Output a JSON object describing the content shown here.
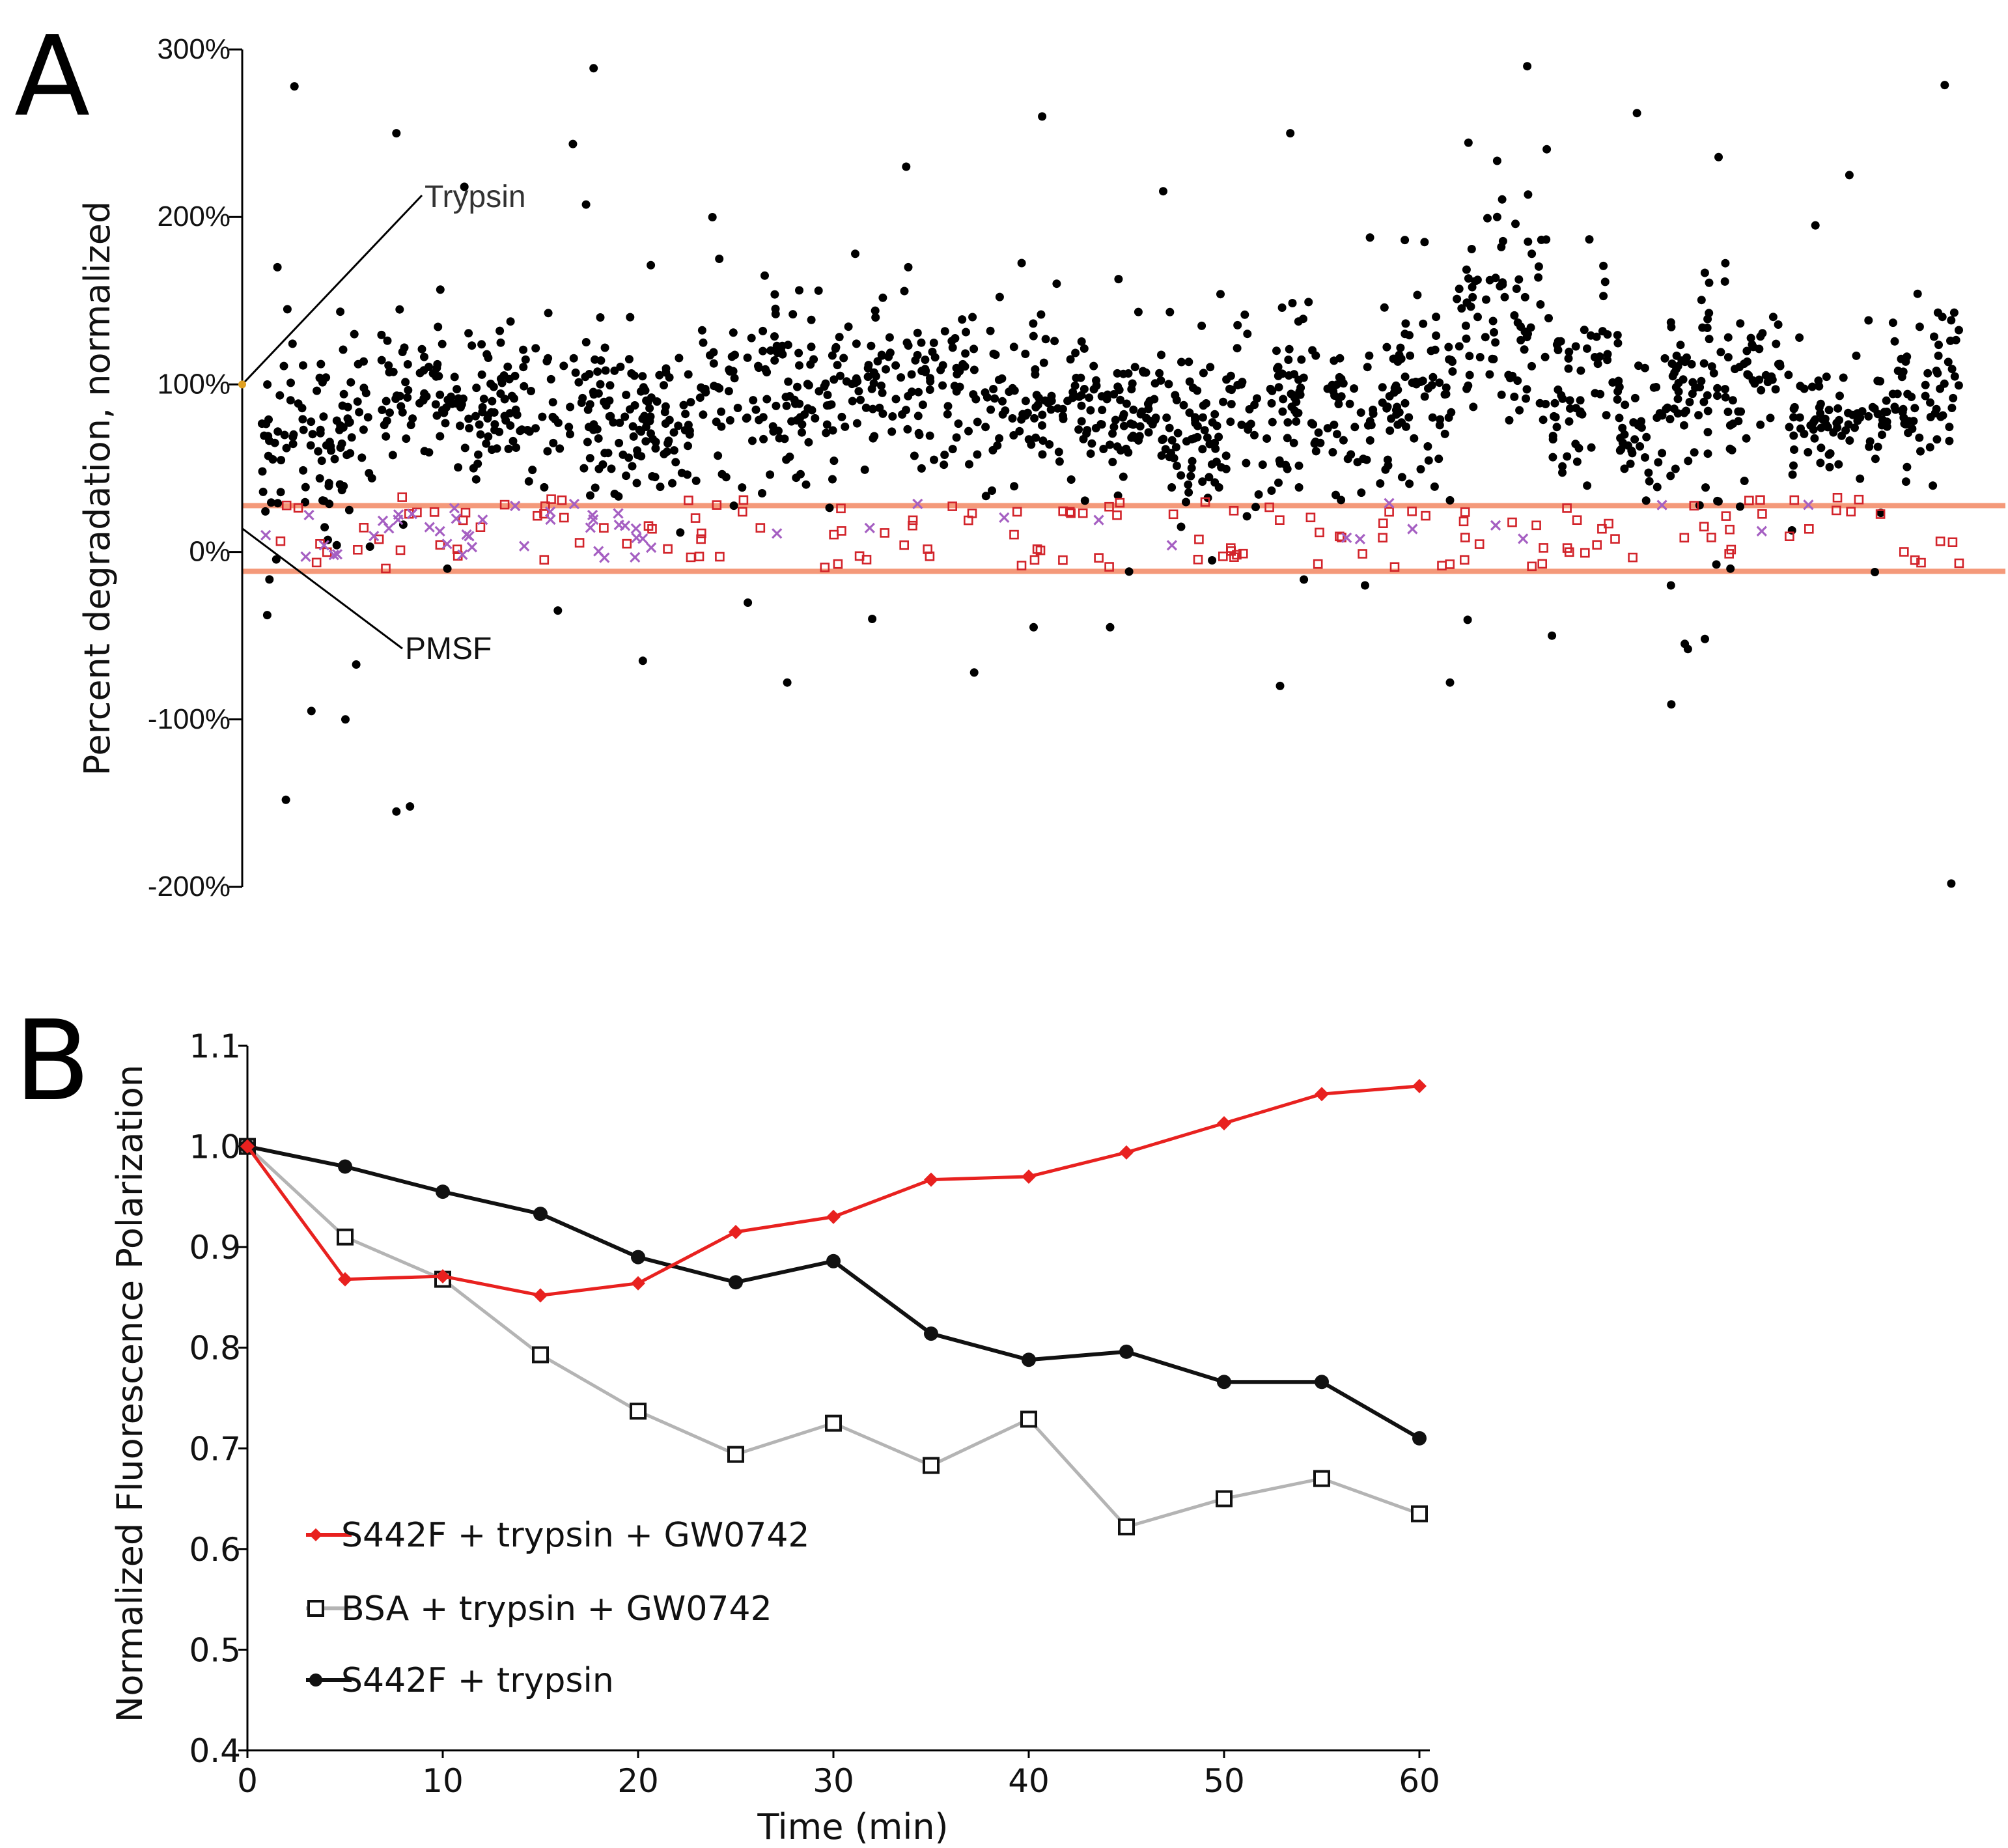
{
  "figure": {
    "panel_a_label": "A",
    "panel_b_label": "B"
  },
  "chart_data": [
    {
      "id": "A",
      "type": "scatter",
      "title": "",
      "xlabel": "",
      "ylabel": "Percent degradation, normalized",
      "ylim": [
        -200,
        300
      ],
      "yticks": [
        "300%",
        "200%",
        "100%",
        "0%",
        "-100%",
        "-200%"
      ],
      "ytick_values": [
        300,
        200,
        100,
        0,
        -100,
        -200
      ],
      "x_range": [
        0,
        1000
      ],
      "reference_lines": [
        30,
        -10
      ],
      "reference_line_color": "#f4997a",
      "annotations": [
        {
          "text": "Trypsin",
          "target_value": 100
        },
        {
          "text": "PMSF",
          "target_value": 14
        }
      ],
      "series": [
        {
          "name": "samples",
          "marker": "dot",
          "color": "#000000",
          "count": 1500,
          "bands": [
            [
              0,
              70,
              70,
              30
            ],
            [
              70,
              190,
              90,
              22
            ],
            [
              190,
              260,
              80,
              25
            ],
            [
              260,
              330,
              90,
              25
            ],
            [
              330,
              420,
              100,
              25
            ],
            [
              420,
              490,
              85,
              25
            ],
            [
              490,
              530,
              80,
              20
            ],
            [
              530,
              590,
              80,
              25
            ],
            [
              590,
              660,
              80,
              25
            ],
            [
              660,
              700,
              90,
              25
            ],
            [
              700,
              760,
              140,
              40
            ],
            [
              760,
              800,
              100,
              30
            ],
            [
              800,
              830,
              70,
              20
            ],
            [
              830,
              900,
              100,
              25
            ],
            [
              900,
              960,
              80,
              15
            ],
            [
              960,
              1000,
              100,
              25
            ]
          ],
          "outliers": [
            [
              20,
              278
            ],
            [
              80,
              250
            ],
            [
              460,
              260
            ],
            [
              810,
              262
            ],
            [
              120,
              218
            ],
            [
              380,
              230
            ],
            [
              606,
              250
            ],
            [
              935,
              225
            ],
            [
              10,
              170
            ],
            [
              200,
              140
            ],
            [
              270,
              175
            ],
            [
              350,
              178
            ],
            [
              685,
              185
            ],
            [
              915,
              195
            ],
            [
              50,
              -100
            ],
            [
              30,
              -95
            ],
            [
              15,
              -148
            ],
            [
              80,
              -155
            ],
            [
              88,
              -152
            ],
            [
              310,
              -78
            ],
            [
              420,
              -72
            ],
            [
              600,
              -80
            ],
            [
              700,
              -78
            ],
            [
              840,
              -58
            ],
            [
              850,
              -52
            ],
            [
              455,
              -45
            ],
            [
              760,
              -50
            ],
            [
              225,
              -65
            ],
            [
              995,
              -198
            ],
            [
              110,
              -10
            ],
            [
              175,
              -35
            ],
            [
              360,
              -40
            ],
            [
              500,
              -45
            ],
            [
              560,
              -5
            ],
            [
              650,
              -20
            ],
            [
              830,
              -20
            ],
            [
              865,
              -10
            ],
            [
              950,
              -12
            ]
          ]
        },
        {
          "name": "controls (squares)",
          "marker": "open-square",
          "color": "#d2232a",
          "count": 150,
          "y_range": [
            -10,
            33
          ]
        },
        {
          "name": "controls (crosses)",
          "marker": "x",
          "color": "#a55fc2",
          "count": 55,
          "y_range": [
            -5,
            30
          ]
        }
      ]
    },
    {
      "id": "B",
      "type": "line",
      "title": "",
      "xlabel": "Time (min)",
      "ylabel": "Normalized Fluorescence Polarization",
      "xlim": [
        0,
        60
      ],
      "ylim": [
        0.4,
        1.1
      ],
      "xticks": [
        "0",
        "10",
        "20",
        "30",
        "40",
        "50",
        "60"
      ],
      "yticks": [
        "1.1",
        "1.0",
        "0.9",
        "0.8",
        "0.7",
        "0.6",
        "0.5",
        "0.4"
      ],
      "x": [
        0,
        5,
        10,
        15,
        20,
        25,
        30,
        35,
        40,
        45,
        50,
        55,
        60
      ],
      "series": [
        {
          "name": "S442F + trypsin + GW0742",
          "color": "#e8211f",
          "marker": "diamond",
          "values": [
            1.0,
            0.868,
            0.871,
            0.852,
            0.864,
            0.915,
            0.93,
            0.967,
            0.97,
            0.994,
            1.023,
            1.052,
            1.06
          ]
        },
        {
          "name": "BSA + trypsin + GW0742",
          "color": "#b4b4b4",
          "marker": "open-square",
          "values": [
            1.0,
            0.91,
            0.868,
            0.793,
            0.737,
            0.694,
            0.725,
            0.683,
            0.729,
            0.622,
            0.65,
            0.67,
            0.635
          ]
        },
        {
          "name": "S442F + trypsin",
          "color": "#111111",
          "marker": "circle",
          "values": [
            1.0,
            0.98,
            0.955,
            0.933,
            0.89,
            0.865,
            0.886,
            0.814,
            0.788,
            0.796,
            0.766,
            0.766,
            0.71
          ]
        }
      ]
    }
  ]
}
